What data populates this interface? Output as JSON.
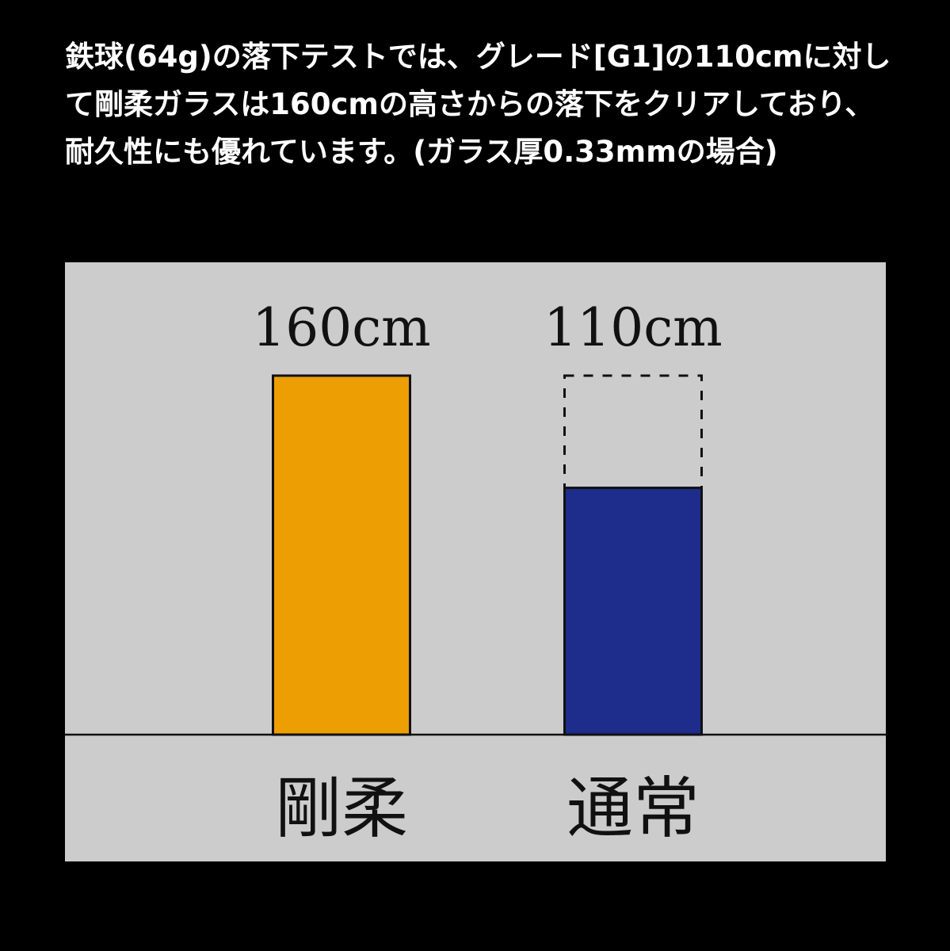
{
  "description": "鉄球(64g)の落下テストでは、グレード[G1]の110cmに対して剛柔ガラスは160cmの高さからの落下をクリアしており、耐久性にも優れています。(ガラス厚0.33mmの場合)",
  "colors": {
    "page_background": "#000000",
    "panel_background": "#cccccc",
    "bar_goju": "#ec9e03",
    "bar_tsujo": "#1e2d8c",
    "outline": "#111111"
  },
  "chart_data": {
    "type": "bar",
    "categories": [
      "剛柔",
      "通常"
    ],
    "values": [
      160,
      110
    ],
    "value_labels": [
      "160cm",
      "110cm"
    ],
    "unit": "cm",
    "reference_outline_value": 160,
    "ylim": [
      0,
      180
    ],
    "grid": false,
    "legend": "none"
  }
}
